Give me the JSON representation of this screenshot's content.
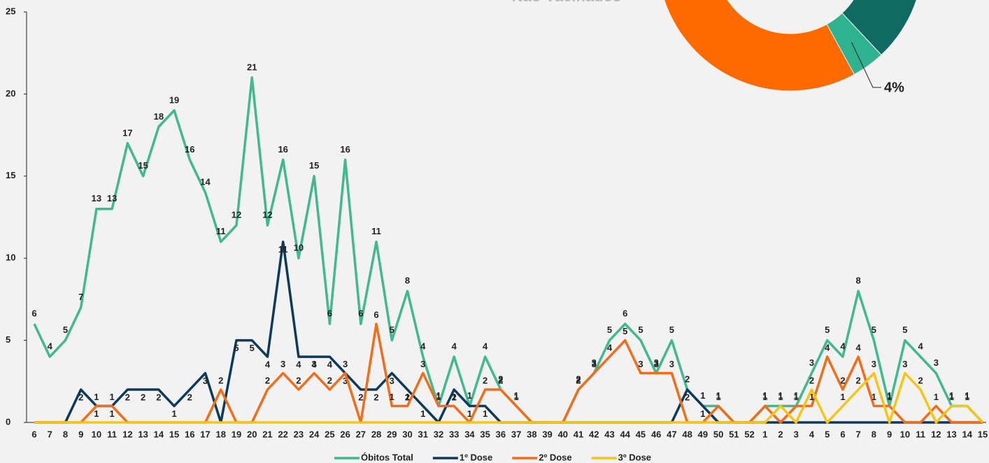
{
  "chart_data": [
    {
      "type": "line",
      "categories": [
        "6",
        "7",
        "8",
        "9",
        "10",
        "11",
        "12",
        "13",
        "14",
        "15",
        "16",
        "17",
        "18",
        "19",
        "20",
        "21",
        "22",
        "23",
        "24",
        "25",
        "26",
        "27",
        "28",
        "29",
        "30",
        "31",
        "32",
        "33",
        "34",
        "35",
        "36",
        "37",
        "38",
        "39",
        "40",
        "41",
        "42",
        "43",
        "44",
        "45",
        "46",
        "47",
        "48",
        "49",
        "50",
        "51",
        "52",
        "1",
        "2",
        "3",
        "4",
        "5",
        "6",
        "7",
        "8",
        "9",
        "10",
        "11",
        "12",
        "13",
        "14",
        "15"
      ],
      "series": [
        {
          "name": "Óbitos Total",
          "color": "#41b892",
          "values": [
            6,
            4,
            5,
            7,
            13,
            13,
            17,
            15,
            18,
            19,
            16,
            14,
            11,
            12,
            21,
            12,
            16,
            10,
            15,
            6,
            16,
            6,
            11,
            5,
            8,
            4,
            1,
            4,
            1,
            4,
            2,
            1,
            0,
            0,
            0,
            2,
            3,
            5,
            6,
            5,
            3,
            5,
            2,
            1,
            1,
            0,
            0,
            1,
            1,
            1,
            3,
            5,
            4,
            8,
            5,
            1,
            5,
            4,
            3,
            1,
            1,
            0
          ]
        },
        {
          "name": "1º Dose",
          "color": "#0d3a5c",
          "values": [
            0,
            0,
            0,
            2,
            1,
            1,
            2,
            2,
            2,
            1,
            2,
            3,
            0,
            5,
            5,
            4,
            11,
            4,
            4,
            4,
            3,
            2,
            2,
            3,
            2,
            1,
            0,
            2,
            1,
            1,
            0,
            0,
            0,
            0,
            0,
            0,
            0,
            0,
            0,
            0,
            0,
            0,
            2,
            1,
            0,
            0,
            0,
            0,
            0,
            0,
            0,
            0,
            0,
            0,
            0,
            0,
            0,
            0,
            0,
            0,
            0,
            0
          ]
        },
        {
          "name": "2º Dose",
          "color": "#f26c1a",
          "values": [
            0,
            0,
            0,
            0,
            1,
            1,
            0,
            0,
            0,
            0,
            0,
            0,
            2,
            0,
            0,
            2,
            3,
            2,
            3,
            2,
            3,
            0,
            6,
            1,
            1,
            3,
            1,
            1,
            0,
            2,
            2,
            1,
            0,
            0,
            0,
            2,
            3,
            4,
            5,
            3,
            3,
            3,
            0,
            0,
            1,
            0,
            0,
            1,
            0,
            1,
            1,
            4,
            2,
            4,
            1,
            1,
            0,
            0,
            1,
            0,
            0,
            0
          ]
        },
        {
          "name": "3º Dose",
          "color": "#f5c518",
          "values": [
            0,
            0,
            0,
            0,
            0,
            0,
            0,
            0,
            0,
            0,
            0,
            0,
            0,
            0,
            0,
            0,
            0,
            0,
            0,
            0,
            0,
            0,
            0,
            0,
            0,
            0,
            0,
            0,
            0,
            0,
            0,
            0,
            0,
            0,
            0,
            0,
            0,
            0,
            0,
            0,
            0,
            0,
            0,
            0,
            0,
            0,
            0,
            0,
            1,
            0,
            2,
            0,
            1,
            2,
            3,
            0,
            3,
            2,
            0,
            1,
            1,
            0
          ]
        }
      ],
      "ylim": [
        0,
        25
      ],
      "yticks": [
        0,
        5,
        10,
        15,
        20,
        25
      ],
      "legend": "bottom"
    },
    {
      "type": "pie",
      "title": "Não Vacinados",
      "values": [
        38,
        4,
        58
      ],
      "colors": [
        "#0f6a61",
        "#2fb28e",
        "#ff6a00"
      ],
      "value_labels": [
        null,
        "4%",
        null
      ]
    }
  ]
}
